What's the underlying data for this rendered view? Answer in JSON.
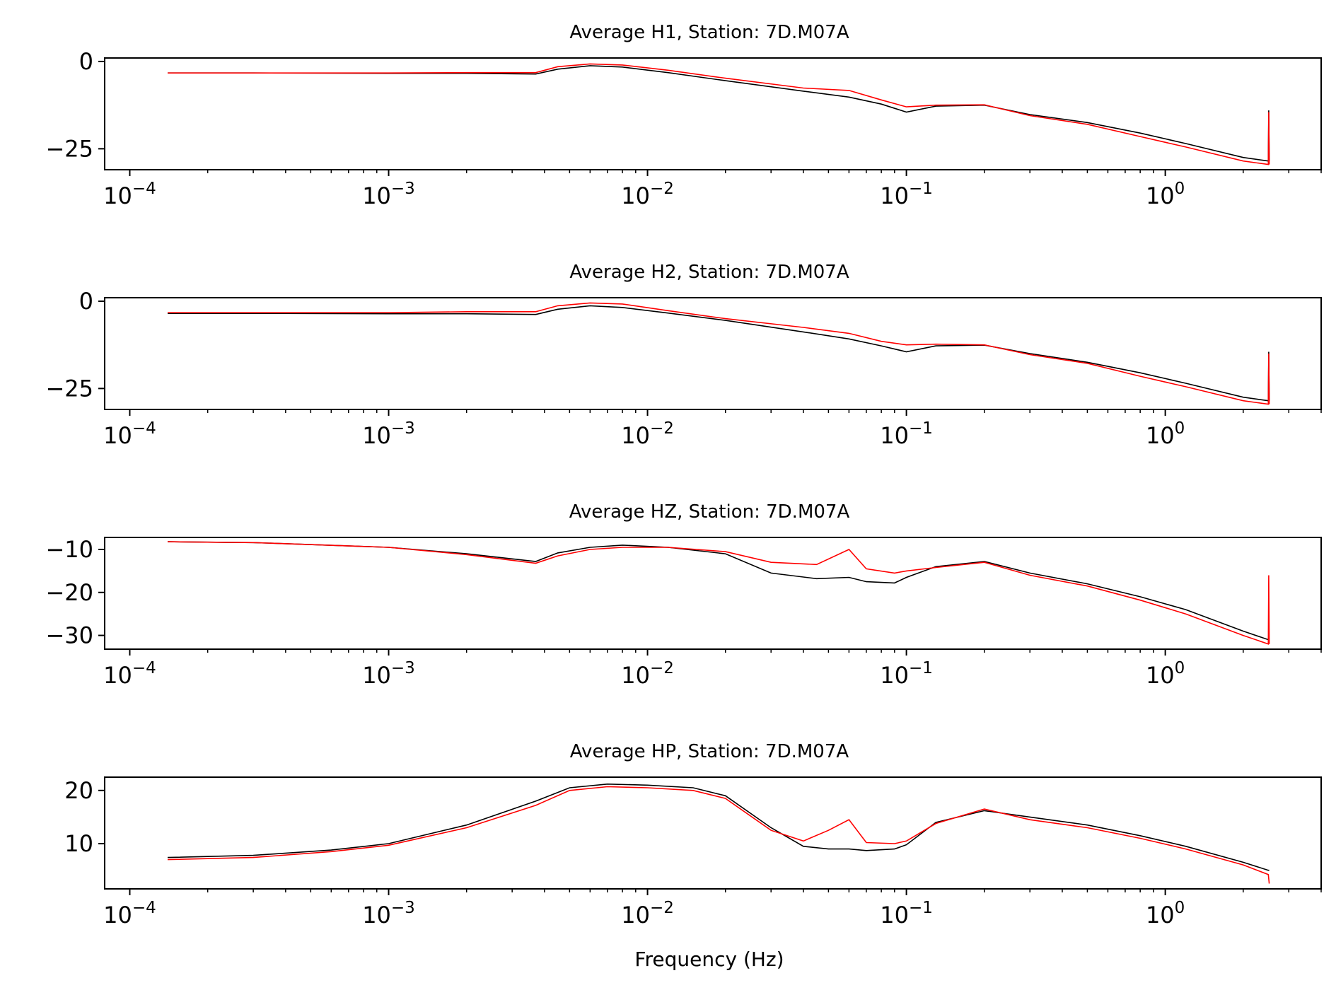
{
  "figure": {
    "xlabel": "Frequency (Hz)",
    "series_colors": [
      "#000000",
      "#ff0000"
    ]
  },
  "chart_data": [
    {
      "type": "line",
      "title": "Average H1, Station: 7D.M07A",
      "xscale": "log",
      "xlim": [
        8e-05,
        4.0
      ],
      "ylim": [
        -31,
        1
      ],
      "yticks": [
        0,
        -25
      ],
      "ytick_labels": [
        "0",
        "−25"
      ],
      "xtick_labels": [
        [
          "10",
          "−4"
        ],
        [
          "10",
          "−3"
        ],
        [
          "10",
          "−2"
        ],
        [
          "10",
          "−1"
        ],
        [
          "10",
          "0"
        ]
      ],
      "xtick_values": [
        0.0001,
        0.001,
        0.01,
        0.1,
        1
      ],
      "x": [
        0.00014,
        0.0003,
        0.001,
        0.002,
        0.0037,
        0.0045,
        0.006,
        0.008,
        0.012,
        0.02,
        0.04,
        0.06,
        0.08,
        0.1,
        0.13,
        0.2,
        0.3,
        0.5,
        0.8,
        1.2,
        2.0,
        2.5,
        2.51,
        2.52
      ],
      "series": [
        {
          "values": [
            -3.3,
            -3.3,
            -3.4,
            -3.4,
            -3.6,
            -2.2,
            -1.2,
            -1.6,
            -3.2,
            -5.5,
            -8.5,
            -10.2,
            -12.2,
            -14.5,
            -12.8,
            -12.5,
            -15.2,
            -17.5,
            -20.5,
            -23.5,
            -27.5,
            -28.5,
            -14.0,
            -28.5
          ]
        },
        {
          "values": [
            -3.3,
            -3.3,
            -3.3,
            -3.2,
            -3.2,
            -1.5,
            -0.7,
            -1.0,
            -2.5,
            -4.8,
            -7.6,
            -8.3,
            -11.0,
            -13.0,
            -12.5,
            -12.4,
            -15.5,
            -18.0,
            -21.5,
            -24.5,
            -28.5,
            -29.5,
            -14.5,
            -29.5
          ]
        }
      ]
    },
    {
      "type": "line",
      "title": "Average H2, Station: 7D.M07A",
      "xscale": "log",
      "xlim": [
        8e-05,
        4.0
      ],
      "ylim": [
        -31,
        1
      ],
      "yticks": [
        0,
        -25
      ],
      "ytick_labels": [
        "0",
        "−25"
      ],
      "xtick_labels": [
        [
          "10",
          "−4"
        ],
        [
          "10",
          "−3"
        ],
        [
          "10",
          "−2"
        ],
        [
          "10",
          "−1"
        ],
        [
          "10",
          "0"
        ]
      ],
      "xtick_values": [
        0.0001,
        0.001,
        0.01,
        0.1,
        1
      ],
      "x": [
        0.00014,
        0.0003,
        0.001,
        0.002,
        0.0037,
        0.0045,
        0.006,
        0.008,
        0.012,
        0.02,
        0.04,
        0.06,
        0.08,
        0.1,
        0.13,
        0.2,
        0.3,
        0.5,
        0.8,
        1.2,
        2.0,
        2.5,
        2.51,
        2.52
      ],
      "series": [
        {
          "values": [
            -3.5,
            -3.5,
            -3.6,
            -3.6,
            -3.8,
            -2.3,
            -1.3,
            -1.8,
            -3.4,
            -5.5,
            -8.8,
            -10.8,
            -12.8,
            -14.5,
            -12.8,
            -12.6,
            -15.0,
            -17.5,
            -20.5,
            -23.5,
            -27.5,
            -28.5,
            -14.5,
            -28.5
          ]
        },
        {
          "values": [
            -3.3,
            -3.3,
            -3.3,
            -3.0,
            -3.0,
            -1.3,
            -0.5,
            -0.8,
            -2.7,
            -5.0,
            -7.5,
            -9.2,
            -11.5,
            -12.5,
            -12.3,
            -12.5,
            -15.3,
            -17.8,
            -21.5,
            -24.5,
            -28.5,
            -29.5,
            -15.0,
            -29.5
          ]
        }
      ]
    },
    {
      "type": "line",
      "title": "Average HZ, Station: 7D.M07A",
      "xscale": "log",
      "xlim": [
        8e-05,
        4.0
      ],
      "ylim": [
        -33.2,
        -7.2
      ],
      "yticks": [
        -10,
        -20,
        -30
      ],
      "ytick_labels": [
        "−10",
        "−20",
        "−30"
      ],
      "xtick_labels": [
        [
          "10",
          "−4"
        ],
        [
          "10",
          "−3"
        ],
        [
          "10",
          "−2"
        ],
        [
          "10",
          "−1"
        ],
        [
          "10",
          "0"
        ]
      ],
      "xtick_values": [
        0.0001,
        0.001,
        0.01,
        0.1,
        1
      ],
      "x": [
        0.00014,
        0.0003,
        0.001,
        0.002,
        0.0037,
        0.0045,
        0.006,
        0.008,
        0.012,
        0.02,
        0.03,
        0.045,
        0.06,
        0.07,
        0.09,
        0.1,
        0.13,
        0.2,
        0.3,
        0.5,
        0.8,
        1.2,
        2.0,
        2.5,
        2.51,
        2.52
      ],
      "series": [
        {
          "values": [
            -8.2,
            -8.4,
            -9.5,
            -11.0,
            -12.8,
            -10.8,
            -9.5,
            -9.0,
            -9.5,
            -11.0,
            -15.5,
            -16.8,
            -16.5,
            -17.5,
            -17.8,
            -16.5,
            -14.0,
            -12.8,
            -15.5,
            -18.0,
            -21.0,
            -24.0,
            -29.0,
            -31.0,
            -31.0,
            -31.0
          ]
        },
        {
          "values": [
            -8.2,
            -8.4,
            -9.5,
            -11.2,
            -13.2,
            -11.5,
            -10.0,
            -9.5,
            -9.5,
            -10.5,
            -13.0,
            -13.5,
            -10.0,
            -14.5,
            -15.5,
            -15.0,
            -14.2,
            -13.0,
            -16.0,
            -18.5,
            -21.8,
            -25.0,
            -30.0,
            -32.0,
            -16.0,
            -32.0
          ]
        }
      ]
    },
    {
      "type": "line",
      "title": "Average HP, Station: 7D.M07A",
      "xscale": "log",
      "xlim": [
        8e-05,
        4.0
      ],
      "ylim": [
        1.5,
        22.5
      ],
      "yticks": [
        20,
        10
      ],
      "ytick_labels": [
        "20",
        "10"
      ],
      "xtick_labels": [
        [
          "10",
          "−4"
        ],
        [
          "10",
          "−3"
        ],
        [
          "10",
          "−2"
        ],
        [
          "10",
          "−1"
        ],
        [
          "10",
          "0"
        ]
      ],
      "xtick_values": [
        0.0001,
        0.001,
        0.01,
        0.1,
        1
      ],
      "x": [
        0.00014,
        0.0003,
        0.0006,
        0.001,
        0.002,
        0.0037,
        0.005,
        0.007,
        0.01,
        0.015,
        0.02,
        0.03,
        0.04,
        0.05,
        0.06,
        0.07,
        0.09,
        0.1,
        0.13,
        0.2,
        0.3,
        0.5,
        0.8,
        1.2,
        2.0,
        2.5,
        2.52
      ],
      "series": [
        {
          "values": [
            7.4,
            7.8,
            8.8,
            10.0,
            13.5,
            18.0,
            20.5,
            21.2,
            21.0,
            20.5,
            19.0,
            13.0,
            9.5,
            9.0,
            9.0,
            8.7,
            9.0,
            9.8,
            14.0,
            16.2,
            15.0,
            13.5,
            11.5,
            9.5,
            6.5,
            5.0,
            5.0
          ]
        },
        {
          "values": [
            7.0,
            7.4,
            8.5,
            9.7,
            13.0,
            17.2,
            20.0,
            20.7,
            20.5,
            20.0,
            18.5,
            12.5,
            10.5,
            12.5,
            14.5,
            10.2,
            10.0,
            10.5,
            13.8,
            16.5,
            14.5,
            13.0,
            11.0,
            9.0,
            6.0,
            4.2,
            2.5
          ]
        }
      ]
    }
  ]
}
